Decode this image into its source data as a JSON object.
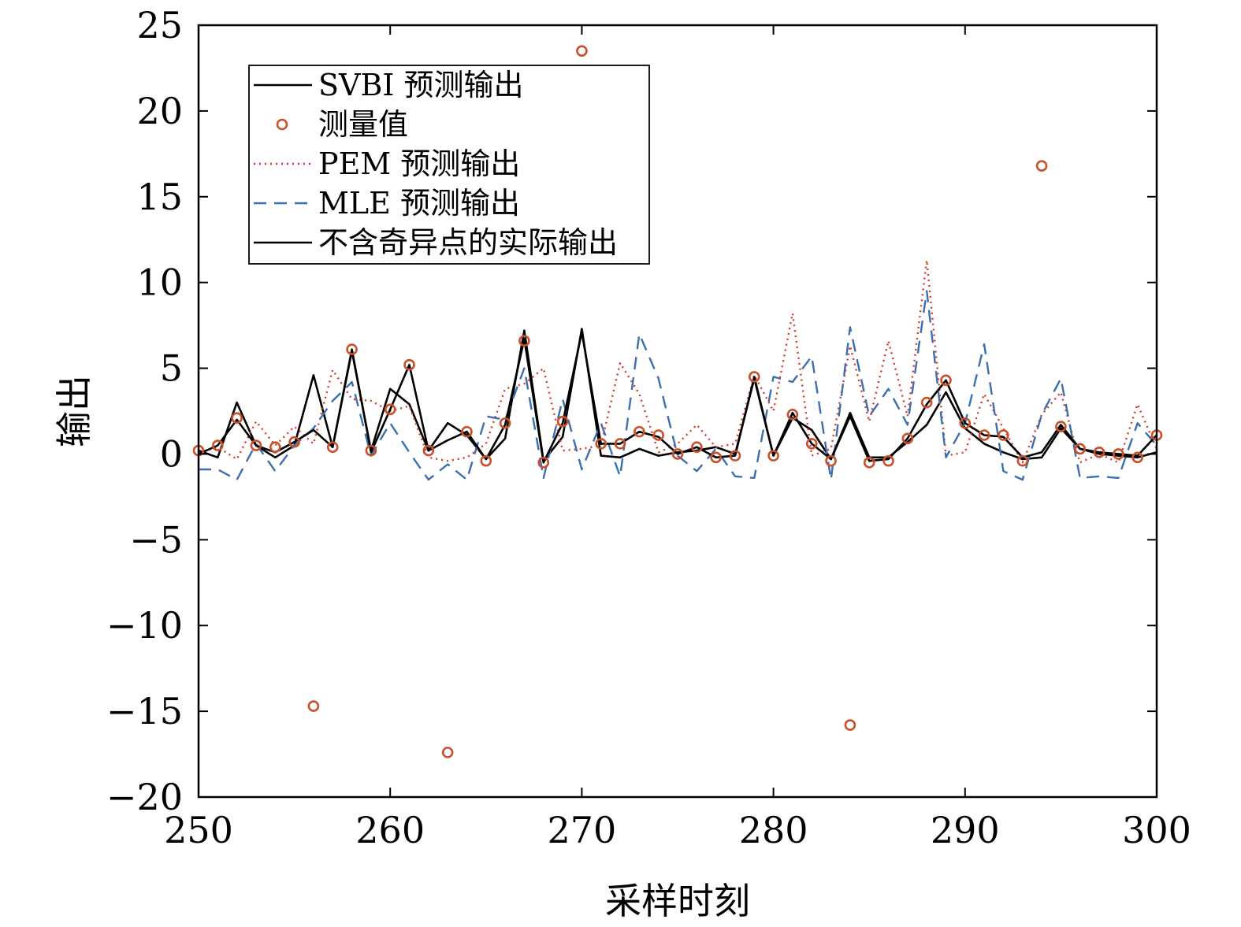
{
  "chart_data": {
    "type": "line",
    "xlabel": "采样时刻",
    "ylabel": "输出",
    "xlim": [
      250,
      300
    ],
    "ylim": [
      -20,
      25
    ],
    "xticks": [
      250,
      260,
      270,
      280,
      290,
      300
    ],
    "yticks": [
      -20,
      -15,
      -10,
      -5,
      0,
      5,
      10,
      15,
      20,
      25
    ],
    "ytick_labels": [
      "−20",
      "−15",
      "−10",
      "−5",
      "0",
      "5",
      "10",
      "15",
      "20",
      "25"
    ],
    "grid": false,
    "legend_position": "top-left",
    "x": [
      250,
      251,
      252,
      253,
      254,
      255,
      256,
      257,
      258,
      259,
      260,
      261,
      262,
      263,
      264,
      265,
      266,
      267,
      268,
      269,
      270,
      271,
      272,
      273,
      274,
      275,
      276,
      277,
      278,
      279,
      280,
      281,
      282,
      283,
      284,
      285,
      286,
      287,
      288,
      289,
      290,
      291,
      292,
      293,
      294,
      295,
      296,
      297,
      298,
      299,
      300
    ],
    "series": [
      {
        "name": "SVBI 预测输出",
        "style": "solid",
        "color": "#000000",
        "values": [
          0.2,
          -0.2,
          3.0,
          0.5,
          -0.2,
          0.5,
          4.6,
          0.4,
          6.0,
          0.2,
          3.8,
          2.9,
          0.2,
          1.8,
          1.1,
          -0.3,
          0.9,
          7.2,
          -0.4,
          1.0,
          7.3,
          -0.1,
          -0.2,
          0.3,
          -0.1,
          0.1,
          0.2,
          0.4,
          0.0,
          4.4,
          -0.1,
          2.1,
          1.4,
          -0.3,
          2.4,
          -0.2,
          -0.2,
          0.7,
          1.7,
          3.6,
          1.5,
          0.6,
          0.1,
          -0.3,
          -0.2,
          1.5,
          0.3,
          0.0,
          -0.1,
          -0.2,
          0.1
        ]
      },
      {
        "name": "测量值",
        "style": "markers",
        "color": "#c8502a",
        "values": [
          0.2,
          0.5,
          2.1,
          0.5,
          0.4,
          0.7,
          -14.7,
          0.4,
          6.1,
          0.2,
          2.6,
          5.2,
          0.2,
          -17.4,
          1.3,
          -0.4,
          1.8,
          6.6,
          -0.5,
          1.9,
          23.5,
          0.6,
          0.6,
          1.3,
          1.1,
          0.0,
          0.4,
          -0.2,
          -0.1,
          4.5,
          -0.1,
          2.3,
          0.6,
          -0.4,
          -15.8,
          -0.5,
          -0.4,
          0.9,
          3.0,
          4.3,
          1.8,
          1.1,
          1.1,
          -0.4,
          16.8,
          1.6,
          0.3,
          0.1,
          0.0,
          -0.2,
          1.1
        ]
      },
      {
        "name": "PEM 预测输出",
        "style": "dotted",
        "color": "#d9362b",
        "values": [
          0.1,
          0.4,
          -0.3,
          1.9,
          0.5,
          1.6,
          0.6,
          4.9,
          3.2,
          3.1,
          2.5,
          2.8,
          -0.2,
          -0.4,
          -0.2,
          0.6,
          3.8,
          4.1,
          5.0,
          0.2,
          0.3,
          0.5,
          5.3,
          3.5,
          0.1,
          0.6,
          1.7,
          0.4,
          0.6,
          4.6,
          2.5,
          8.2,
          -0.1,
          0.3,
          6.3,
          1.9,
          6.6,
          2.2,
          11.3,
          -0.1,
          0.1,
          3.5,
          1.5,
          -0.5,
          2.3,
          3.6,
          -0.5,
          0.0,
          -0.5,
          2.9,
          0.3
        ]
      },
      {
        "name": "MLE 预测输出",
        "style": "dashed",
        "color": "#3c6fb0",
        "values": [
          -0.9,
          -0.9,
          -1.5,
          0.6,
          -1.0,
          0.5,
          1.5,
          3.1,
          4.2,
          -0.1,
          1.8,
          0.1,
          -1.5,
          -0.6,
          -1.5,
          2.2,
          2.0,
          5.0,
          -1.4,
          3.2,
          -0.9,
          1.8,
          -1.3,
          7.0,
          4.4,
          -0.1,
          -1.0,
          0.3,
          -1.3,
          -1.4,
          4.5,
          4.2,
          5.7,
          -1.5,
          7.4,
          2.2,
          3.8,
          1.7,
          9.5,
          -0.2,
          1.8,
          6.4,
          -1.0,
          -1.5,
          2.3,
          4.4,
          -1.4,
          -1.3,
          -1.4,
          1.8,
          0.5
        ]
      },
      {
        "name": "不含奇异点的实际输出",
        "style": "solid",
        "color": "#000000",
        "values": [
          0.0,
          0.5,
          2.0,
          0.5,
          0.1,
          0.7,
          1.4,
          0.4,
          6.1,
          0.1,
          2.6,
          5.2,
          0.2,
          0.8,
          1.3,
          -0.3,
          1.7,
          6.7,
          -0.5,
          1.8,
          7.1,
          0.6,
          0.6,
          1.3,
          1.0,
          0.0,
          0.4,
          -0.2,
          -0.1,
          4.5,
          -0.1,
          2.4,
          0.6,
          -0.3,
          2.2,
          -0.4,
          -0.3,
          0.9,
          2.9,
          4.3,
          1.8,
          1.1,
          1.0,
          -0.2,
          0.1,
          1.7,
          0.3,
          0.1,
          0.0,
          -0.1,
          1.1
        ]
      }
    ]
  }
}
